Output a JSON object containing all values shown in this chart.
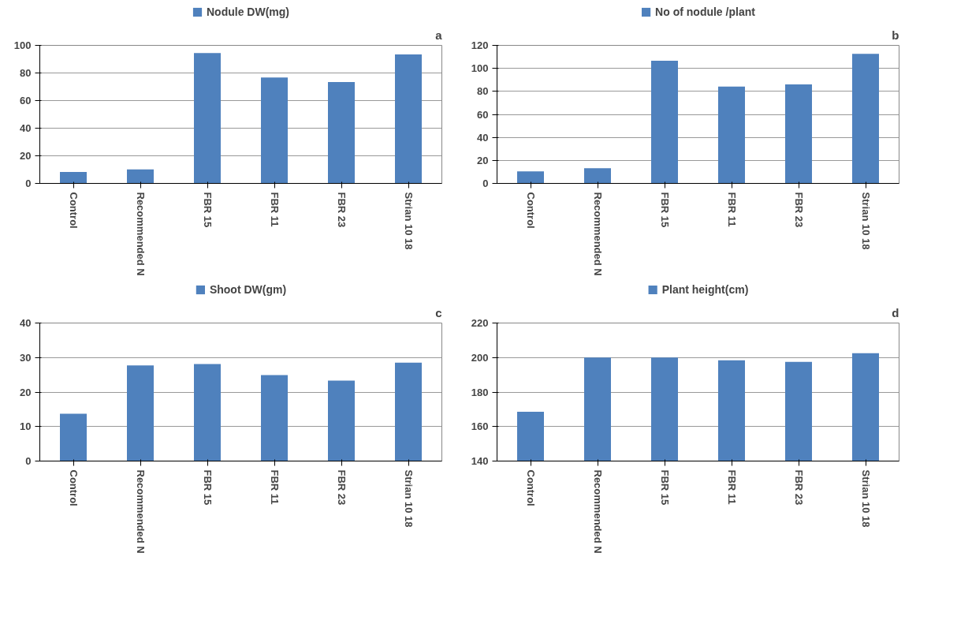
{
  "chart_data": [
    {
      "type": "bar",
      "categories": [
        "Control",
        "Recommended N",
        "FBR 15",
        "FBR 11",
        "FBR 23",
        "Strian 10 18"
      ],
      "series": [
        {
          "name": "Nodule DW(mg)",
          "color": "#4f81bd",
          "values": [
            8.3,
            10.1,
            94.5,
            76.7,
            73.4,
            93.5
          ]
        }
      ],
      "ylim": [
        0,
        100
      ],
      "yticks": [
        0,
        20,
        40,
        60,
        80,
        100
      ],
      "grid": "y",
      "legend": "top",
      "annotations": [
        "a"
      ]
    },
    {
      "type": "bar",
      "categories": [
        "Control",
        "Recommended N",
        "FBR 15",
        "FBR 11",
        "FBR 23",
        "Strian 10 18"
      ],
      "series": [
        {
          "name": "No of nodule /plant",
          "color": "#4f81bd",
          "values": [
            10.4,
            13.2,
            106.7,
            84.1,
            86.1,
            112.6
          ]
        }
      ],
      "ylim": [
        0,
        120
      ],
      "yticks": [
        0,
        20,
        40,
        60,
        80,
        100,
        120
      ],
      "grid": "y",
      "legend": "top",
      "annotations": [
        "b"
      ]
    },
    {
      "type": "bar",
      "categories": [
        "Control",
        "Recommended N",
        "FBR 15",
        "FBR 11",
        "FBR 23",
        "Strian 10 18"
      ],
      "series": [
        {
          "name": "Shoot DW(gm)",
          "color": "#4f81bd",
          "values": [
            13.7,
            27.7,
            28.1,
            24.9,
            23.3,
            28.5
          ]
        }
      ],
      "ylim": [
        0,
        40
      ],
      "yticks": [
        0,
        10,
        20,
        30,
        40
      ],
      "grid": "y",
      "legend": "top",
      "annotations": [
        "c"
      ]
    },
    {
      "type": "bar",
      "categories": [
        "Control",
        "Recommended N",
        "FBR 15",
        "FBR 11",
        "FBR 23",
        "Strian 10 18"
      ],
      "series": [
        {
          "name": "Plant height(cm)",
          "color": "#4f81bd",
          "values": [
            168.6,
            200,
            200,
            198.4,
            197.5,
            202.5
          ]
        }
      ],
      "ylim": [
        140,
        220
      ],
      "yticks": [
        140,
        160,
        180,
        200,
        220
      ],
      "grid": "y",
      "legend": "top",
      "annotations": [
        "d"
      ]
    }
  ]
}
